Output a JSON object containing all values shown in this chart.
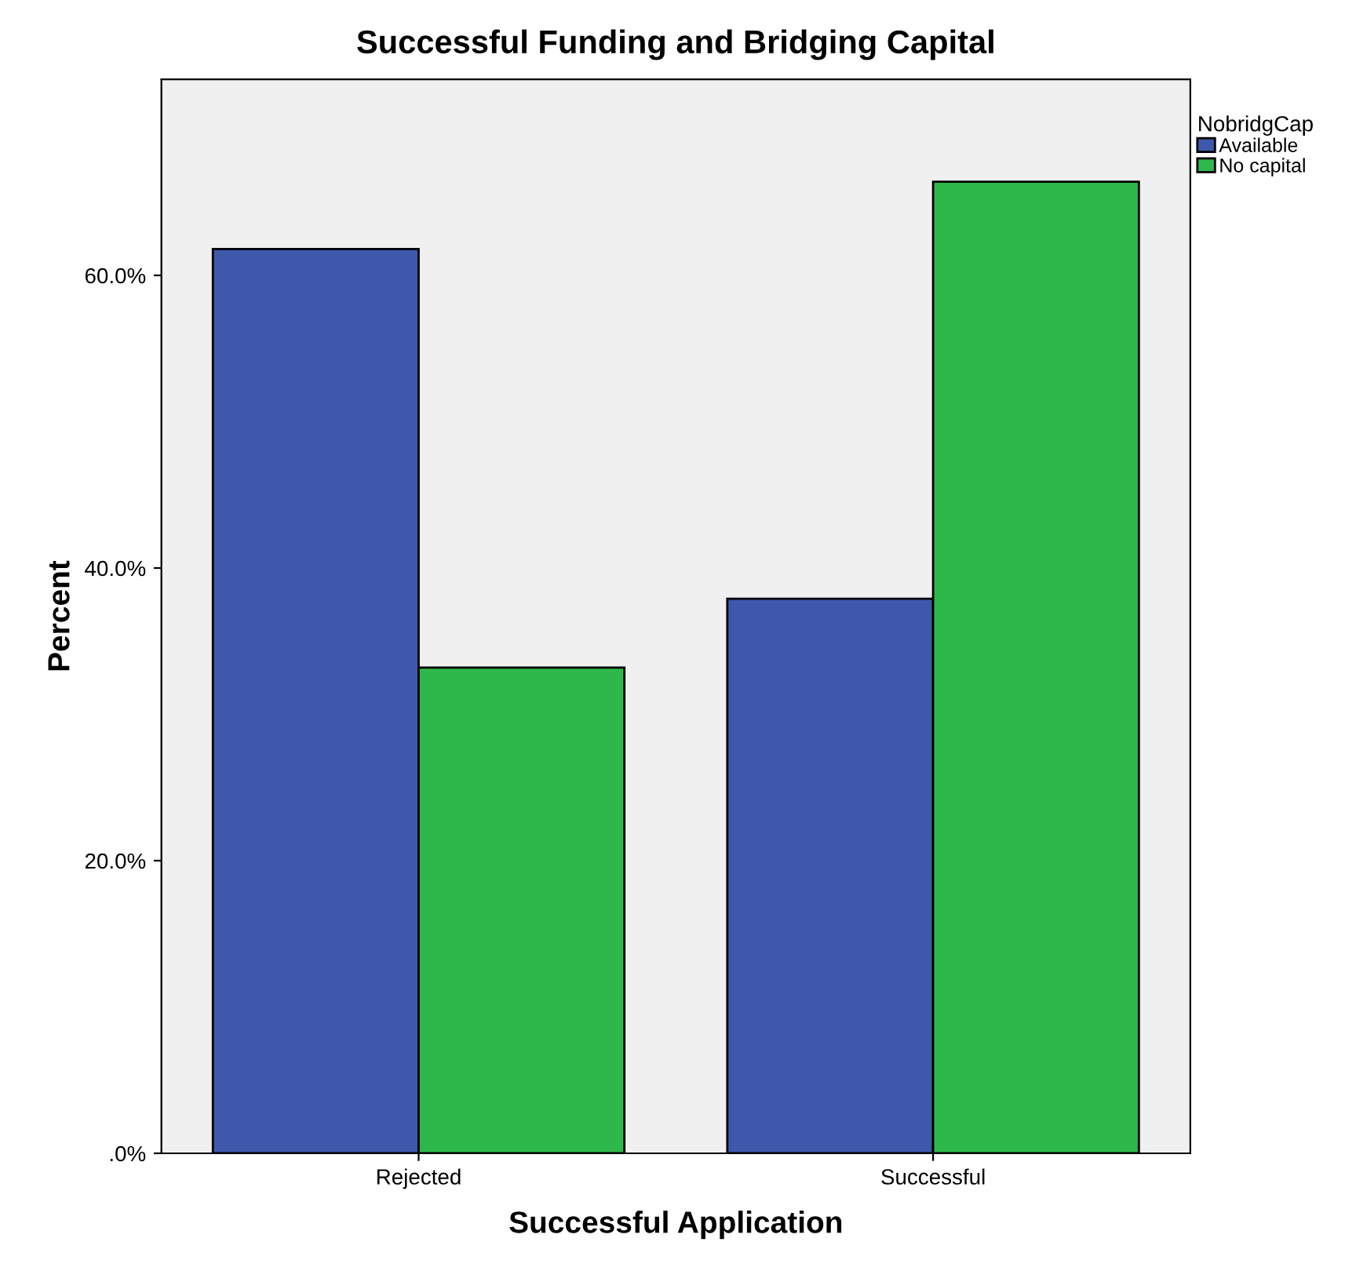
{
  "chart_data": {
    "type": "bar",
    "title": "Successful Funding and Bridging Capital",
    "xlabel": "Successful Application",
    "ylabel": "Percent",
    "legend_title": "NobridgCap",
    "categories": [
      "Rejected",
      "Successful"
    ],
    "series": [
      {
        "name": "Available",
        "color": "#3e58ac",
        "values": [
          61.8,
          37.9
        ]
      },
      {
        "name": "No capital",
        "color": "#2eb84a",
        "values": [
          33.2,
          66.4
        ]
      }
    ],
    "ylim": [
      0,
      73.4
    ],
    "yticks": [
      {
        "value": 0,
        "label": ".0%"
      },
      {
        "value": 20,
        "label": "20.0%"
      },
      {
        "value": 40,
        "label": "40.0%"
      },
      {
        "value": 60,
        "label": "60.0%"
      }
    ],
    "grid": false,
    "legend": "right"
  }
}
